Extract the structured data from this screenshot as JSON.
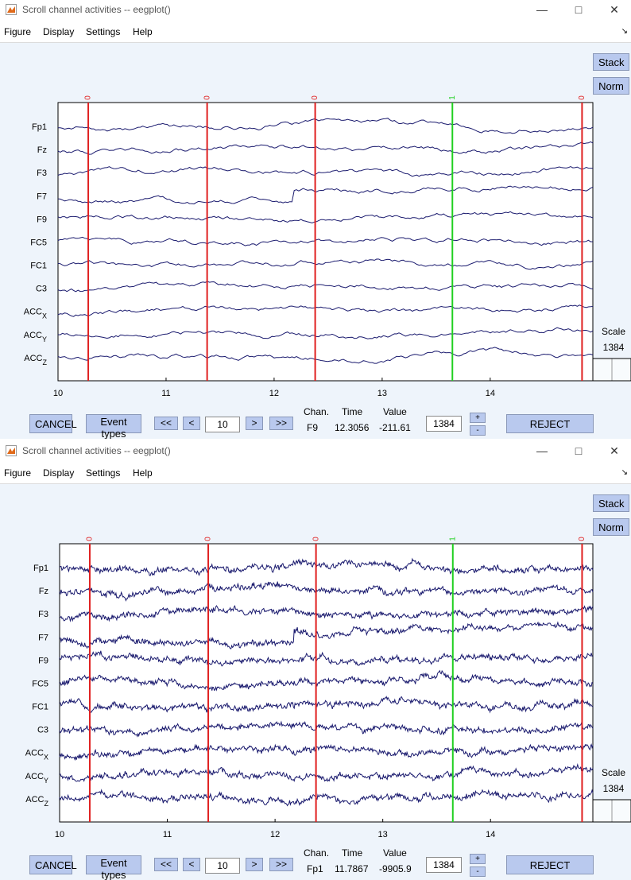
{
  "windows": [
    {
      "title": "Scroll channel activities -- eegplot()",
      "menu": [
        "Figure",
        "Display",
        "Settings",
        "Help"
      ],
      "stack_label": "Stack",
      "norm_label": "Norm",
      "channels": [
        "Fp1",
        "Fz",
        "F3",
        "F7",
        "F9",
        "FC5",
        "FC1",
        "C3",
        "ACC",
        "ACC",
        "ACC"
      ],
      "channel_subscripts": [
        "",
        "",
        "",
        "",
        "",
        "",
        "",
        "",
        "X",
        "Y",
        "Z"
      ],
      "event_markers": [
        {
          "time": 10.28,
          "label": "0",
          "color": "#e02020"
        },
        {
          "time": 11.38,
          "label": "0",
          "color": "#e02020"
        },
        {
          "time": 12.38,
          "label": "0",
          "color": "#e02020"
        },
        {
          "time": 13.65,
          "label": "1",
          "color": "#20d020"
        },
        {
          "time": 14.85,
          "label": "0",
          "color": "#e02020"
        }
      ],
      "x_ticks": [
        "10",
        "11",
        "12",
        "13",
        "14"
      ],
      "scale_label": "Scale",
      "scale_value": "1384",
      "cancel_label": "CANCEL",
      "event_types_label": "Event types",
      "nav_buttons": [
        "<<",
        "<",
        ">",
        ">>"
      ],
      "start_value": "10",
      "chan_header": "Chan.",
      "time_header": "Time",
      "value_header": "Value",
      "chan_value": "F9",
      "time_value": "12.3056",
      "value_value": "-211.61",
      "scale_input": "1384",
      "plus_label": "+",
      "minus_label": "-",
      "reject_label": "REJECT"
    },
    {
      "title": "Scroll channel activities -- eegplot()",
      "menu": [
        "Figure",
        "Display",
        "Settings",
        "Help"
      ],
      "stack_label": "Stack",
      "norm_label": "Norm",
      "channels": [
        "Fp1",
        "Fz",
        "F3",
        "F7",
        "F9",
        "FC5",
        "FC1",
        "C3",
        "ACC",
        "ACC",
        "ACC"
      ],
      "channel_subscripts": [
        "",
        "",
        "",
        "",
        "",
        "",
        "",
        "",
        "X",
        "Y",
        "Z"
      ],
      "event_markers": [
        {
          "time": 10.28,
          "label": "0",
          "color": "#e02020"
        },
        {
          "time": 11.38,
          "label": "0",
          "color": "#e02020"
        },
        {
          "time": 12.38,
          "label": "0",
          "color": "#e02020"
        },
        {
          "time": 13.65,
          "label": "1",
          "color": "#20d020"
        },
        {
          "time": 14.85,
          "label": "0",
          "color": "#e02020"
        }
      ],
      "x_ticks": [
        "10",
        "11",
        "12",
        "13",
        "14"
      ],
      "scale_label": "Scale",
      "scale_value": "1384",
      "cancel_label": "CANCEL",
      "event_types_label": "Event types",
      "nav_buttons": [
        "<<",
        "<",
        ">",
        ">>"
      ],
      "start_value": "10",
      "chan_header": "Chan.",
      "time_header": "Time",
      "value_header": "Value",
      "chan_value": "Fp1",
      "time_value": "11.7867",
      "value_value": "-9905.9",
      "scale_input": "1384",
      "plus_label": "+",
      "minus_label": "-",
      "reject_label": "REJECT"
    }
  ]
}
